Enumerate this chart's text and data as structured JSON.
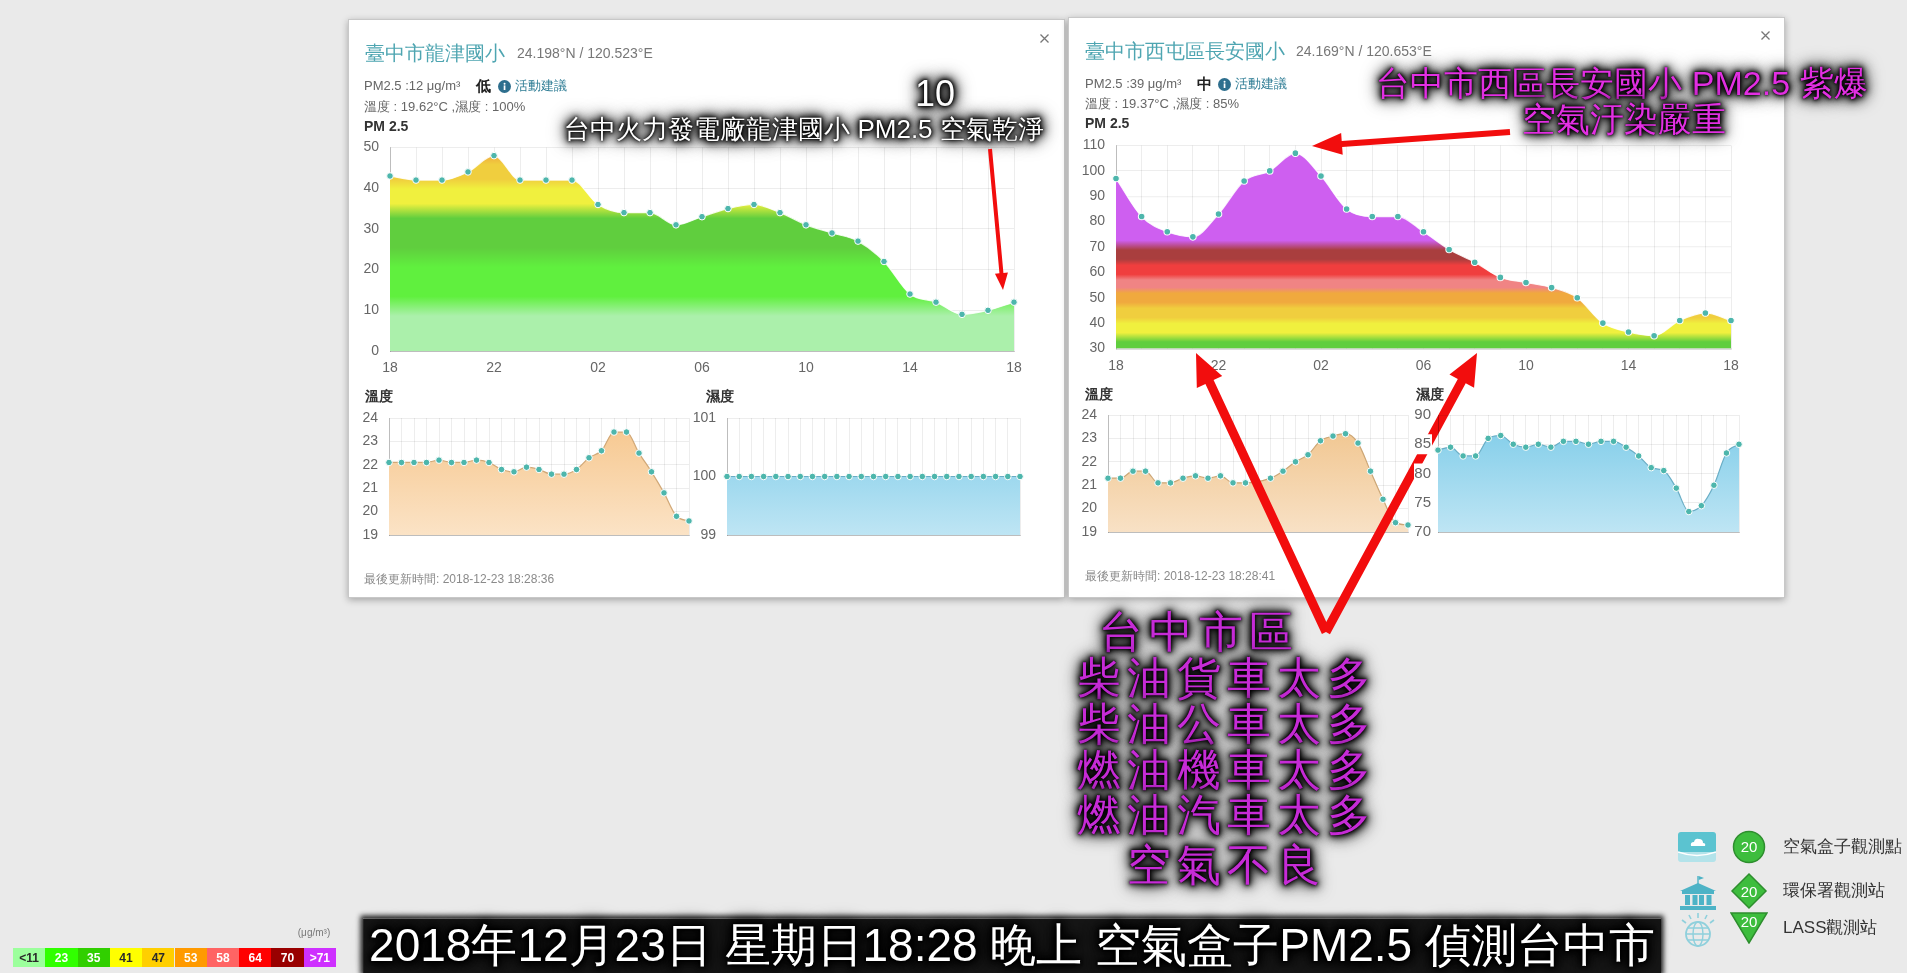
{
  "chart_data": [
    {
      "type": "area",
      "title": "臺中市龍津國小",
      "subtitle": "24.198°N / 120.523°E",
      "ylabel": "PM 2.5",
      "annotations": [
        "PM2.5 :12 μg/m³",
        "低",
        "活動建議",
        "溫度 : 19.62°C ,濕度 : 100%",
        "10",
        "台中火力發電廠龍津國小 PM2.5 空氣乾淨"
      ],
      "x": [
        "2018-12-22T18:00",
        "2018-12-22T19:00",
        "2018-12-22T20:00",
        "2018-12-22T21:00",
        "2018-12-22T22:00",
        "2018-12-22T23:00",
        "2018-12-23T00:00",
        "2018-12-23T01:00",
        "2018-12-23T02:00",
        "2018-12-23T03:00",
        "2018-12-23T04:00",
        "2018-12-23T05:00",
        "2018-12-23T06:00",
        "2018-12-23T07:00",
        "2018-12-23T08:00",
        "2018-12-23T09:00",
        "2018-12-23T10:00",
        "2018-12-23T11:00",
        "2018-12-23T12:00",
        "2018-12-23T13:00",
        "2018-12-23T14:00",
        "2018-12-23T15:00",
        "2018-12-23T16:00",
        "2018-12-23T17:00",
        "2018-12-23T18:00"
      ],
      "xlim": [
        "2018-12-22T18:00",
        "2018-12-23T18:00"
      ],
      "xticks": [
        {
          "value": "2018-12-22T18:00",
          "label": "18"
        },
        {
          "value": "2018-12-22T19:00",
          "label": null
        },
        {
          "value": "2018-12-22T20:00",
          "label": null
        },
        {
          "value": "2018-12-22T21:00",
          "label": null
        },
        {
          "value": "2018-12-22T22:00",
          "label": "22"
        },
        {
          "value": "2018-12-22T23:00",
          "label": null
        },
        {
          "value": "2018-12-23T00:00",
          "label": null
        },
        {
          "value": "2018-12-23T01:00",
          "label": null
        },
        {
          "value": "2018-12-23T02:00",
          "label": "02"
        },
        {
          "value": "2018-12-23T03:00",
          "label": null
        },
        {
          "value": "2018-12-23T04:00",
          "label": null
        },
        {
          "value": "2018-12-23T05:00",
          "label": null
        },
        {
          "value": "2018-12-23T06:00",
          "label": "06"
        },
        {
          "value": "2018-12-23T07:00",
          "label": null
        },
        {
          "value": "2018-12-23T08:00",
          "label": null
        },
        {
          "value": "2018-12-23T09:00",
          "label": null
        },
        {
          "value": "2018-12-23T10:00",
          "label": "10"
        },
        {
          "value": "2018-12-23T11:00",
          "label": null
        },
        {
          "value": "2018-12-23T12:00",
          "label": null
        },
        {
          "value": "2018-12-23T13:00",
          "label": null
        },
        {
          "value": "2018-12-23T14:00",
          "label": "14"
        },
        {
          "value": "2018-12-23T15:00",
          "label": null
        },
        {
          "value": "2018-12-23T16:00",
          "label": null
        },
        {
          "value": "2018-12-23T17:00",
          "label": null
        },
        {
          "value": "2018-12-23T18:00",
          "label": "18"
        }
      ],
      "ylim": [
        0,
        50
      ],
      "yticks": [
        0,
        10,
        20,
        30,
        40,
        50
      ],
      "grid": true,
      "marker": "circle",
      "series": [
        {
          "values": [
            43,
            42,
            42,
            44,
            48,
            42,
            42,
            42,
            36,
            34,
            34,
            31,
            33,
            35,
            36,
            34,
            31,
            29,
            27,
            22,
            14,
            12,
            9,
            10,
            12
          ]
        }
      ]
    },
    {
      "type": "area",
      "title": "溫度",
      "annotations": [
        "最後更新時間: 2018-12-23 18:28:36"
      ],
      "categories": [
        null,
        null,
        null,
        null,
        null,
        null,
        null,
        null,
        null,
        null,
        null,
        null,
        null,
        null,
        null,
        null,
        null,
        null,
        null,
        null,
        null,
        null,
        null,
        null,
        null
      ],
      "ylim": [
        19,
        24
      ],
      "yticks": [
        19,
        20,
        21,
        22,
        23,
        24
      ],
      "grid": true,
      "marker": "circle",
      "tick_labels": "y",
      "series": [
        {
          "color": "#f6c68c",
          "values": [
            22.1,
            22.1,
            22.1,
            22.1,
            22.2,
            22.1,
            22.1,
            22.2,
            22.1,
            21.8,
            21.7,
            21.9,
            21.8,
            21.6,
            21.6,
            21.8,
            22.3,
            22.6,
            23.4,
            23.4,
            22.5,
            21.7,
            20.8,
            19.8,
            19.6
          ]
        }
      ]
    },
    {
      "type": "area",
      "title": "濕度",
      "categories": [
        null,
        null,
        null,
        null,
        null,
        null,
        null,
        null,
        null,
        null,
        null,
        null,
        null,
        null,
        null,
        null,
        null,
        null,
        null,
        null,
        null,
        null,
        null,
        null,
        null
      ],
      "ylim": [
        99,
        101
      ],
      "yticks": [
        99,
        100,
        101
      ],
      "grid": true,
      "marker": "circle",
      "tick_labels": "y",
      "series": [
        {
          "color": "#7ccbe8",
          "values": [
            100,
            100,
            100,
            100,
            100,
            100,
            100,
            100,
            100,
            100,
            100,
            100,
            100,
            100,
            100,
            100,
            100,
            100,
            100,
            100,
            100,
            100,
            100,
            100,
            100
          ]
        }
      ]
    },
    {
      "type": "area",
      "title": "臺中市西屯區長安國小",
      "subtitle": "24.169°N / 120.653°E",
      "ylabel": "PM 2.5",
      "annotations": [
        "PM2.5 :39 μg/m³",
        "中",
        "活動建議",
        "溫度 : 19.37°C ,濕度 : 85%",
        "台中市西區長安國小 PM2.5 紫爆",
        "空氣汙染嚴重"
      ],
      "x": [
        "2018-12-22T18:00",
        "2018-12-22T19:00",
        "2018-12-22T20:00",
        "2018-12-22T21:00",
        "2018-12-22T22:00",
        "2018-12-22T23:00",
        "2018-12-23T00:00",
        "2018-12-23T01:00",
        "2018-12-23T02:00",
        "2018-12-23T03:00",
        "2018-12-23T04:00",
        "2018-12-23T05:00",
        "2018-12-23T06:00",
        "2018-12-23T07:00",
        "2018-12-23T08:00",
        "2018-12-23T09:00",
        "2018-12-23T10:00",
        "2018-12-23T11:00",
        "2018-12-23T12:00",
        "2018-12-23T13:00",
        "2018-12-23T14:00",
        "2018-12-23T15:00",
        "2018-12-23T16:00",
        "2018-12-23T17:00",
        "2018-12-23T18:00"
      ],
      "xlim": [
        "2018-12-22T18:00",
        "2018-12-23T18:00"
      ],
      "xticks": [
        {
          "value": "2018-12-22T18:00",
          "label": "18"
        },
        {
          "value": "2018-12-22T19:00",
          "label": null
        },
        {
          "value": "2018-12-22T20:00",
          "label": null
        },
        {
          "value": "2018-12-22T21:00",
          "label": null
        },
        {
          "value": "2018-12-22T22:00",
          "label": "22"
        },
        {
          "value": "2018-12-22T23:00",
          "label": null
        },
        {
          "value": "2018-12-23T00:00",
          "label": null
        },
        {
          "value": "2018-12-23T01:00",
          "label": null
        },
        {
          "value": "2018-12-23T02:00",
          "label": "02"
        },
        {
          "value": "2018-12-23T03:00",
          "label": null
        },
        {
          "value": "2018-12-23T04:00",
          "label": null
        },
        {
          "value": "2018-12-23T05:00",
          "label": null
        },
        {
          "value": "2018-12-23T06:00",
          "label": "06"
        },
        {
          "value": "2018-12-23T07:00",
          "label": null
        },
        {
          "value": "2018-12-23T08:00",
          "label": null
        },
        {
          "value": "2018-12-23T09:00",
          "label": null
        },
        {
          "value": "2018-12-23T10:00",
          "label": "10"
        },
        {
          "value": "2018-12-23T11:00",
          "label": null
        },
        {
          "value": "2018-12-23T12:00",
          "label": null
        },
        {
          "value": "2018-12-23T13:00",
          "label": null
        },
        {
          "value": "2018-12-23T14:00",
          "label": "14"
        },
        {
          "value": "2018-12-23T15:00",
          "label": null
        },
        {
          "value": "2018-12-23T16:00",
          "label": null
        },
        {
          "value": "2018-12-23T17:00",
          "label": null
        },
        {
          "value": "2018-12-23T18:00",
          "label": "18"
        }
      ],
      "ylim": [
        30,
        110
      ],
      "yticks": [
        30,
        40,
        50,
        60,
        70,
        80,
        90,
        100,
        110
      ],
      "grid": true,
      "marker": "circle",
      "series": [
        {
          "values": [
            97,
            82,
            76,
            74,
            83,
            96,
            100,
            107,
            98,
            85,
            82,
            82,
            76,
            69,
            64,
            58,
            56,
            54,
            50,
            40,
            36.5,
            35,
            41,
            44,
            41
          ]
        }
      ]
    },
    {
      "type": "area",
      "title": "溫度",
      "annotations": [
        "最後更新時間: 2018-12-23 18:28:41"
      ],
      "categories": [
        null,
        null,
        null,
        null,
        null,
        null,
        null,
        null,
        null,
        null,
        null,
        null,
        null,
        null,
        null,
        null,
        null,
        null,
        null,
        null,
        null,
        null,
        null,
        null,
        null
      ],
      "ylim": [
        19,
        24
      ],
      "yticks": [
        19,
        20,
        21,
        22,
        23,
        24
      ],
      "grid": true,
      "marker": "circle",
      "tick_labels": "y",
      "series": [
        {
          "color": "#f0c38a",
          "values": [
            21.3,
            21.3,
            21.6,
            21.6,
            21.1,
            21.1,
            21.3,
            21.4,
            21.3,
            21.4,
            21.1,
            21.1,
            null,
            21.3,
            21.6,
            22.0,
            22.3,
            22.9,
            23.1,
            23.2,
            22.8,
            21.6,
            20.4,
            19.4,
            19.3
          ]
        }
      ]
    },
    {
      "type": "area",
      "title": "濕度",
      "categories": [
        null,
        null,
        null,
        null,
        null,
        null,
        null,
        null,
        null,
        null,
        null,
        null,
        null,
        null,
        null,
        null,
        null,
        null,
        null,
        null,
        null,
        null,
        null,
        null,
        null
      ],
      "ylim": [
        70,
        90
      ],
      "yticks": [
        70,
        75,
        80,
        85,
        90
      ],
      "grid": true,
      "marker": "circle",
      "tick_labels": "y",
      "series": [
        {
          "color": "#7ccbe8",
          "values": [
            84,
            84.5,
            83,
            83,
            86,
            86.5,
            85,
            84.5,
            85,
            84.5,
            85.5,
            85.5,
            85,
            85.5,
            85.5,
            84.5,
            83,
            81,
            80.5,
            77.5,
            73.5,
            74.5,
            78,
            83.5,
            85
          ]
        }
      ]
    },
    {
      "type": "other",
      "annotations": [
        "台中市區",
        "柴油貨車太多",
        "柴油公車太多",
        "燃油機車太多",
        "燃油汽車太多",
        "空氣不良"
      ]
    },
    {
      "type": "other",
      "title": "(μg/m³)",
      "values": [
        11,
        23,
        35,
        41,
        47,
        53,
        58,
        64,
        70,
        71
      ],
      "value_labels": [
        "<11",
        "23",
        "35",
        "41",
        "47",
        "53",
        "58",
        "64",
        "70",
        ">71"
      ],
      "colors": [
        "#9cff9c",
        "#31ff00",
        "#31cf00",
        "#ffff00",
        "#ffcf00",
        "#ff9a00",
        "#ff6464",
        "#ff0000",
        "#990000",
        "#ce30ff"
      ]
    },
    {
      "type": "other",
      "title": "2018年12月23日 星期日18:28 晚上 空氣盒子PM2.5 偵測台中市"
    },
    {
      "type": "other",
      "categories": [
        "空氣盒子觀測點",
        "環保署觀測站",
        "LASS觀測站"
      ],
      "values": [
        20,
        20,
        20
      ],
      "data_labels": true,
      "color": "#3dbd3d"
    }
  ]
}
